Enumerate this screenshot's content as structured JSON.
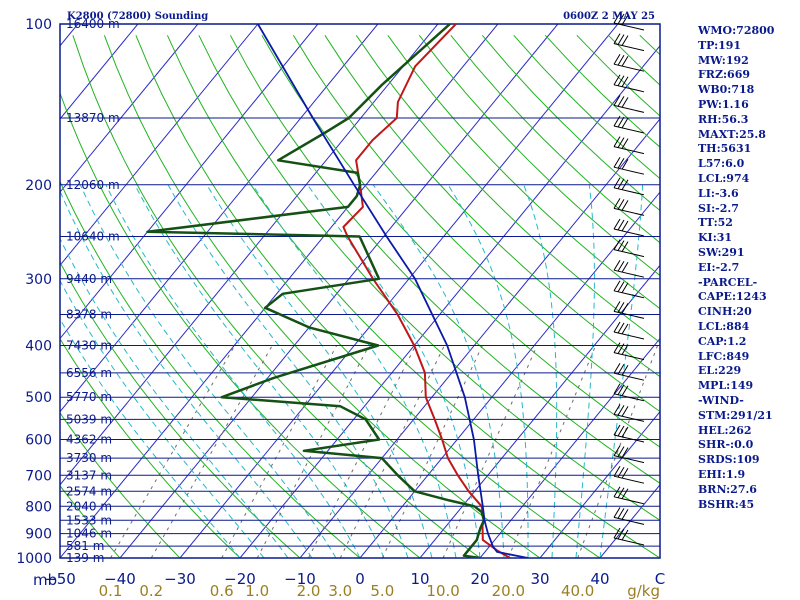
{
  "header": {
    "station": "K2800 (72800) Sounding",
    "time": "0600Z  2 MAY 25"
  },
  "axis": {
    "pressure_unit": "mb",
    "mixing_unit": "g/kg"
  },
  "colors": {
    "background": "#ffffff",
    "frame": "#0a1a8c",
    "isotherm": "#2b2bc8",
    "dry_adiabat": "#22b322",
    "moist_adiabat": "#26b8c8",
    "mixing_ratio": "#b49a5a",
    "temperature": "#c01818",
    "dewpoint": "#155015",
    "parcel": "#0a1aa8",
    "wind_barb": "#000000"
  },
  "chart_data": {
    "type": "line",
    "title": "K2800 (72800) Sounding",
    "subtitle": "0600Z  2 MAY 25",
    "xlabel": "",
    "ylabel": "mb",
    "y_scale": "log",
    "ylim": [
      1000,
      100
    ],
    "xlim": [
      -50,
      50
    ],
    "skew": true,
    "grid": true,
    "pressure_ticks": [
      100,
      200,
      300,
      400,
      500,
      600,
      700,
      800,
      900,
      1000
    ],
    "temperature_ticks": [
      "−50",
      "−40",
      "−30",
      "−20",
      "−10",
      "0",
      "10",
      "20",
      "30",
      "40",
      "C"
    ],
    "mixing_ratio_ticks": [
      "0.1",
      "0.2",
      "0.6",
      "1.0",
      "2.0",
      "3.0",
      "5.0",
      "10.0",
      "20.0",
      "40.0"
    ],
    "height_labels": [
      {
        "p": 100,
        "text": "16400 m"
      },
      {
        "p": 150,
        "text": "13870 m"
      },
      {
        "p": 200,
        "text": "12060 m"
      },
      {
        "p": 250,
        "text": "10640 m"
      },
      {
        "p": 300,
        "text": "9440 m"
      },
      {
        "p": 350,
        "text": "8378 m"
      },
      {
        "p": 400,
        "text": "7430 m"
      },
      {
        "p": 450,
        "text": "6556 m"
      },
      {
        "p": 500,
        "text": "5770 m"
      },
      {
        "p": 550,
        "text": "5039 m"
      },
      {
        "p": 600,
        "text": "4362 m"
      },
      {
        "p": 650,
        "text": "3730 m"
      },
      {
        "p": 700,
        "text": "3137 m"
      },
      {
        "p": 750,
        "text": "2574 m"
      },
      {
        "p": 800,
        "text": "2040 m"
      },
      {
        "p": 850,
        "text": "1533 m"
      },
      {
        "p": 900,
        "text": "1046 m"
      },
      {
        "p": 950,
        "text": "581 m"
      },
      {
        "p": 1000,
        "text": "139 m"
      }
    ],
    "series": [
      {
        "key": "temperature",
        "points": [
          {
            "p": 1000,
            "t": 25
          },
          {
            "p": 970,
            "t": 22
          },
          {
            "p": 925,
            "t": 18
          },
          {
            "p": 870,
            "t": 16
          },
          {
            "p": 850,
            "t": 15.5
          },
          {
            "p": 800,
            "t": 13.2
          },
          {
            "p": 750,
            "t": 9
          },
          {
            "p": 700,
            "t": 5
          },
          {
            "p": 650,
            "t": 1
          },
          {
            "p": 600,
            "t": -2.5
          },
          {
            "p": 550,
            "t": -6.5
          },
          {
            "p": 500,
            "t": -11
          },
          {
            "p": 450,
            "t": -14.5
          },
          {
            "p": 400,
            "t": -20
          },
          {
            "p": 350,
            "t": -27
          },
          {
            "p": 300,
            "t": -36
          },
          {
            "p": 250,
            "t": -46
          },
          {
            "p": 240,
            "t": -48
          },
          {
            "p": 220,
            "t": -47.5
          },
          {
            "p": 200,
            "t": -51
          },
          {
            "p": 180,
            "t": -55
          },
          {
            "p": 165,
            "t": -55
          },
          {
            "p": 150,
            "t": -54
          },
          {
            "p": 140,
            "t": -56
          },
          {
            "p": 120,
            "t": -58
          },
          {
            "p": 100,
            "t": -57
          }
        ]
      },
      {
        "key": "dewpoint",
        "points": [
          {
            "p": 1000,
            "t": 20
          },
          {
            "p": 990,
            "t": 17
          },
          {
            "p": 925,
            "t": 17
          },
          {
            "p": 880,
            "t": 16
          },
          {
            "p": 850,
            "t": 15.5
          },
          {
            "p": 820,
            "t": 14
          },
          {
            "p": 800,
            "t": 12
          },
          {
            "p": 780,
            "t": 7
          },
          {
            "p": 750,
            "t": 0
          },
          {
            "p": 700,
            "t": -5
          },
          {
            "p": 650,
            "t": -10
          },
          {
            "p": 630,
            "t": -24
          },
          {
            "p": 600,
            "t": -13
          },
          {
            "p": 550,
            "t": -18
          },
          {
            "p": 520,
            "t": -24
          },
          {
            "p": 500,
            "t": -45
          },
          {
            "p": 460,
            "t": -39
          },
          {
            "p": 400,
            "t": -26
          },
          {
            "p": 370,
            "t": -40
          },
          {
            "p": 340,
            "t": -50
          },
          {
            "p": 320,
            "t": -49
          },
          {
            "p": 300,
            "t": -35
          },
          {
            "p": 250,
            "t": -44
          },
          {
            "p": 245,
            "t": -80
          },
          {
            "p": 220,
            "t": -50
          },
          {
            "p": 210,
            "t": -50
          },
          {
            "p": 200,
            "t": -51
          },
          {
            "p": 190,
            "t": -53
          },
          {
            "p": 180,
            "t": -68
          },
          {
            "p": 160,
            "t": -64
          },
          {
            "p": 150,
            "t": -62
          },
          {
            "p": 130,
            "t": -61
          },
          {
            "p": 100,
            "t": -58
          }
        ]
      },
      {
        "key": "parcel",
        "points": [
          {
            "p": 1000,
            "t": 28
          },
          {
            "p": 974,
            "t": 22
          },
          {
            "p": 950,
            "t": 20.5
          },
          {
            "p": 900,
            "t": 18
          },
          {
            "p": 850,
            "t": 15.6
          },
          {
            "p": 800,
            "t": 13.4
          },
          {
            "p": 700,
            "t": 8.4
          },
          {
            "p": 600,
            "t": 2.8
          },
          {
            "p": 500,
            "t": -4.5
          },
          {
            "p": 400,
            "t": -14.5
          },
          {
            "p": 300,
            "t": -29
          },
          {
            "p": 250,
            "t": -39.5
          },
          {
            "p": 200,
            "t": -52
          },
          {
            "p": 150,
            "t": -68
          },
          {
            "p": 100,
            "t": -90
          }
        ]
      }
    ]
  },
  "stats": [
    "WMO:72800",
    "TP:191",
    "MW:192",
    "FRZ:669",
    "WB0:718",
    "PW:1.16",
    "RH:56.3",
    "MAXT:25.8",
    "TH:5631",
    "L57:6.0",
    "LCL:974",
    "LI:-3.6",
    "SI:-2.7",
    "TT:52",
    "KI:31",
    "SW:291",
    "EI:-2.7",
    "-PARCEL-",
    "CAPE:1243",
    "CINH:20",
    "LCL:884",
    "CAP:1.2",
    "LFC:849",
    "EL:229",
    "MPL:149",
    "-WIND-",
    "STM:291/21",
    "HEL:262",
    "SHR-:0.0",
    "SRDS:109",
    "EHI:1.9",
    "BRN:27.6",
    "BSHR:45"
  ]
}
